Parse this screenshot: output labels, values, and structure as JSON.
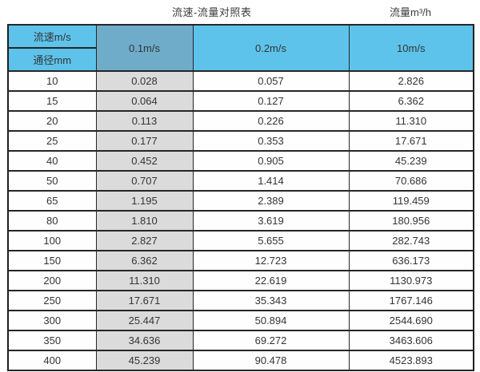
{
  "page": {
    "title_left": "流速-流量对照表",
    "title_right": "流量m³/h"
  },
  "table": {
    "corner_top_label": "流速m/s",
    "corner_bottom_label": "通径mm",
    "velocity_columns": [
      "0.1m/s",
      "0.2m/s",
      "10m/s"
    ],
    "rows": [
      {
        "diameter": "10",
        "values": [
          "0.028",
          "0.057",
          "2.826"
        ]
      },
      {
        "diameter": "15",
        "values": [
          "0.064",
          "0.127",
          "6.362"
        ]
      },
      {
        "diameter": "20",
        "values": [
          "0.113",
          "0.226",
          "11.310"
        ]
      },
      {
        "diameter": "25",
        "values": [
          "0.177",
          "0.353",
          "17.671"
        ]
      },
      {
        "diameter": "40",
        "values": [
          "0.452",
          "0.905",
          "45.239"
        ]
      },
      {
        "diameter": "50",
        "values": [
          "0.707",
          "1.414",
          "70.686"
        ]
      },
      {
        "diameter": "65",
        "values": [
          "1.195",
          "2.389",
          "119.459"
        ]
      },
      {
        "diameter": "80",
        "values": [
          "1.810",
          "3.619",
          "180.956"
        ]
      },
      {
        "diameter": "100",
        "values": [
          "2.827",
          "5.655",
          "282.743"
        ]
      },
      {
        "diameter": "150",
        "values": [
          "6.362",
          "12.723",
          "636.173"
        ]
      },
      {
        "diameter": "200",
        "values": [
          "11.310",
          "22.619",
          "1130.973"
        ]
      },
      {
        "diameter": "250",
        "values": [
          "17.671",
          "35.343",
          "1767.146"
        ]
      },
      {
        "diameter": "300",
        "values": [
          "25.447",
          "50.894",
          "2544.690"
        ]
      },
      {
        "diameter": "350",
        "values": [
          "34.636",
          "69.272",
          "3463.606"
        ]
      },
      {
        "diameter": "400",
        "values": [
          "45.239",
          "90.478",
          "4523.893"
        ]
      }
    ],
    "colors": {
      "header_blue": "#5ec3eb",
      "header_selected_blue": "#6facca",
      "highlight_column_gray": "#dbdbdb",
      "border": "#262626"
    }
  },
  "chart_data": {
    "type": "table",
    "title": "流速-流量对照表",
    "unit_label": "流量m³/h",
    "row_axis_label": "通径mm",
    "col_axis_label": "流速m/s",
    "columns": [
      "0.1m/s",
      "0.2m/s",
      "10m/s"
    ],
    "rows": [
      {
        "diameter_mm": 10,
        "flow_m3h": [
          0.028,
          0.057,
          2.826
        ]
      },
      {
        "diameter_mm": 15,
        "flow_m3h": [
          0.064,
          0.127,
          6.362
        ]
      },
      {
        "diameter_mm": 20,
        "flow_m3h": [
          0.113,
          0.226,
          11.31
        ]
      },
      {
        "diameter_mm": 25,
        "flow_m3h": [
          0.177,
          0.353,
          17.671
        ]
      },
      {
        "diameter_mm": 40,
        "flow_m3h": [
          0.452,
          0.905,
          45.239
        ]
      },
      {
        "diameter_mm": 50,
        "flow_m3h": [
          0.707,
          1.414,
          70.686
        ]
      },
      {
        "diameter_mm": 65,
        "flow_m3h": [
          1.195,
          2.389,
          119.459
        ]
      },
      {
        "diameter_mm": 80,
        "flow_m3h": [
          1.81,
          3.619,
          180.956
        ]
      },
      {
        "diameter_mm": 100,
        "flow_m3h": [
          2.827,
          5.655,
          282.743
        ]
      },
      {
        "diameter_mm": 150,
        "flow_m3h": [
          6.362,
          12.723,
          636.173
        ]
      },
      {
        "diameter_mm": 200,
        "flow_m3h": [
          11.31,
          22.619,
          1130.973
        ]
      },
      {
        "diameter_mm": 250,
        "flow_m3h": [
          17.671,
          35.343,
          1767.146
        ]
      },
      {
        "diameter_mm": 300,
        "flow_m3h": [
          25.447,
          50.894,
          2544.69
        ]
      },
      {
        "diameter_mm": 350,
        "flow_m3h": [
          34.636,
          69.272,
          3463.606
        ]
      },
      {
        "diameter_mm": 400,
        "flow_m3h": [
          45.239,
          90.478,
          4523.893
        ]
      }
    ]
  }
}
